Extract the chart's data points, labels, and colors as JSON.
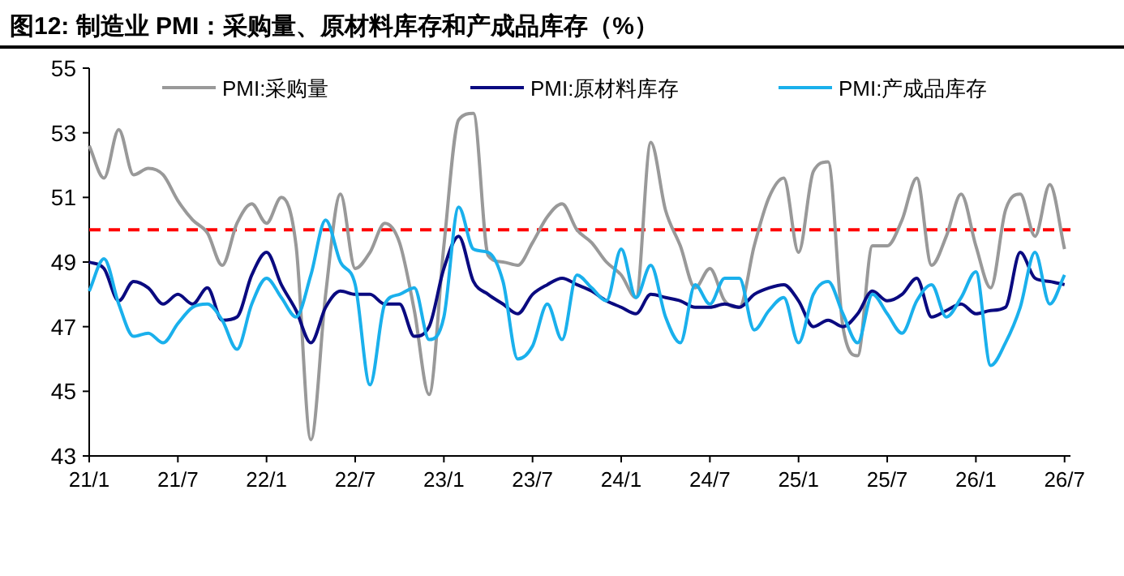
{
  "chart_data": {
    "type": "line",
    "title": "图12:  制造业 PMI：采购量、原材料库存和产成品库存（%）",
    "categories": [
      "21/1",
      null,
      null,
      null,
      null,
      null,
      "21/7",
      null,
      null,
      null,
      null,
      null,
      "22/1",
      null,
      null,
      null,
      null,
      null,
      "22/7",
      null,
      null,
      null,
      null,
      null,
      "23/1",
      null,
      null,
      null,
      null,
      null,
      "23/7",
      null,
      null,
      null,
      null,
      null,
      "24/1",
      null,
      null,
      null,
      null,
      null,
      "24/7",
      null,
      null,
      null,
      null,
      null,
      "25/1",
      null,
      null,
      null,
      null,
      null,
      "25/7",
      null,
      null,
      null,
      null,
      null,
      "26/1",
      null,
      null,
      null,
      null,
      null,
      "26/7"
    ],
    "series": [
      {
        "name": "PMI:采购量",
        "color": "#999999",
        "values": [
          52.6,
          51.6,
          53.1,
          51.7,
          51.9,
          51.7,
          50.9,
          50.3,
          49.9,
          48.9,
          50.2,
          50.8,
          50.2,
          51.0,
          49.5,
          43.5,
          48.0,
          51.1,
          48.8,
          49.3,
          50.2,
          49.6,
          47.5,
          44.9,
          49.5,
          53.4,
          53.6,
          49.2,
          49.0,
          48.9,
          49.6,
          50.4,
          50.8,
          50.0,
          49.6,
          49.0,
          48.6,
          47.9,
          52.7,
          50.6,
          49.5,
          48.2,
          48.8,
          47.8,
          47.6,
          49.5,
          51.0,
          51.6,
          49.3,
          51.8,
          52.1,
          47.0,
          46.1,
          49.5,
          49.5,
          50.3,
          51.6,
          48.9,
          49.8,
          51.1,
          49.5,
          48.2,
          50.6,
          51.1,
          49.8,
          51.4,
          49.4
        ]
      },
      {
        "name": "PMI:原材料库存",
        "color": "#0a0a80",
        "values": [
          49.0,
          48.8,
          47.8,
          48.4,
          48.2,
          47.7,
          48.0,
          47.7,
          48.2,
          47.2,
          47.3,
          48.6,
          49.3,
          48.3,
          47.5,
          46.5,
          47.6,
          48.1,
          48.0,
          48.0,
          47.7,
          47.7,
          46.7,
          47.0,
          48.8,
          49.8,
          48.4,
          48.0,
          47.7,
          47.4,
          48.0,
          48.3,
          48.5,
          48.3,
          48.1,
          47.8,
          47.6,
          47.4,
          48.0,
          47.9,
          47.8,
          47.6,
          47.6,
          47.7,
          47.6,
          48.0,
          48.2,
          48.3,
          47.8,
          47.0,
          47.2,
          47.0,
          47.4,
          48.1,
          47.8,
          48.0,
          48.5,
          47.3,
          47.5,
          47.7,
          47.4,
          47.5,
          47.6,
          49.3,
          48.5,
          48.4,
          48.3
        ]
      },
      {
        "name": "PMI:产成品库存",
        "color": "#1ab0ec",
        "values": [
          48.1,
          49.1,
          47.7,
          46.7,
          46.8,
          46.5,
          47.1,
          47.6,
          47.7,
          47.2,
          46.3,
          47.7,
          48.5,
          47.9,
          47.3,
          48.6,
          50.3,
          49.0,
          48.3,
          45.2,
          47.7,
          48.0,
          48.2,
          46.6,
          47.3,
          50.7,
          49.4,
          49.3,
          48.4,
          46.0,
          46.4,
          47.7,
          46.6,
          48.6,
          48.2,
          47.8,
          49.4,
          47.9,
          48.9,
          47.3,
          46.5,
          48.3,
          47.7,
          48.5,
          48.5,
          46.9,
          47.5,
          47.9,
          46.5,
          48.0,
          48.4,
          47.4,
          46.5,
          48.0,
          47.4,
          46.8,
          47.8,
          48.3,
          47.3,
          47.9,
          48.7,
          45.8,
          46.5,
          47.6,
          49.3,
          47.7,
          48.6
        ]
      }
    ],
    "ylim": [
      43,
      55
    ],
    "yticks": [
      43,
      45,
      47,
      49,
      51,
      53,
      55
    ],
    "ref_lines": [
      {
        "axis": "y",
        "value": 50,
        "color": "#ff0000",
        "line_style": "dashed"
      }
    ],
    "legend": "top",
    "grid": false,
    "line_style": "solid",
    "marker": "none"
  }
}
